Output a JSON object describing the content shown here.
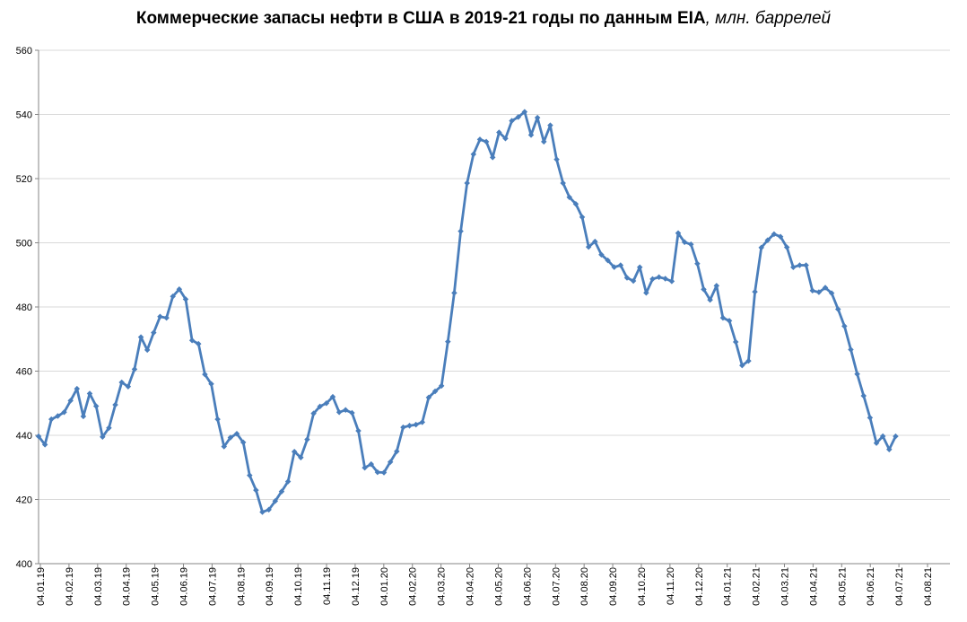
{
  "title": {
    "main": "Коммерческие запасы нефти в США в 2019-21 годы по данным EIA",
    "unit": ", млн. баррелей"
  },
  "colors": {
    "series": "#4a7ebb",
    "grid": "#d9d9d9",
    "axis": "#868686"
  },
  "chart_data": {
    "type": "line",
    "title": "Коммерческие запасы нефти в США в 2019-21 годы по данным EIA, млн. баррелей",
    "ylim": [
      400,
      560
    ],
    "yticks": [
      400,
      420,
      440,
      460,
      480,
      500,
      520,
      540,
      560
    ],
    "xtick_labels": [
      "04.01.19",
      "04.02.19",
      "04.03.19",
      "04.04.19",
      "04.05.19",
      "04.06.19",
      "04.07.19",
      "04.08.19",
      "04.09.19",
      "04.10.19",
      "04.11.19",
      "04.12.19",
      "04.01.20",
      "04.02.20",
      "04.03.20",
      "04.04.20",
      "04.05.20",
      "04.06.20",
      "04.07.20",
      "04.08.20",
      "04.09.20",
      "04.10.20",
      "04.11.20",
      "04.12.20",
      "04.01.21",
      "04.02.21",
      "04.03.21",
      "04.04.21",
      "04.05.21",
      "04.06.21",
      "04.07.21",
      "04.08.21"
    ],
    "grid": true,
    "legend": "none",
    "series": [
      {
        "values": [
          439.7,
          437.1,
          445.0,
          446.0,
          447.2,
          450.8,
          454.5,
          445.9,
          453.0,
          449.1,
          439.5,
          442.3,
          449.5,
          456.5,
          455.2,
          460.6,
          470.6,
          466.6,
          472.0,
          477.0,
          476.6,
          483.3,
          485.5,
          482.4,
          469.6,
          468.5,
          459.0,
          456.0,
          445.0,
          436.5,
          439.3,
          440.5,
          437.8,
          427.5,
          422.9,
          416.1,
          416.8,
          419.5,
          422.5,
          425.6,
          434.9,
          433.1,
          438.7,
          446.8,
          449.0,
          450.0,
          452.0,
          447.2,
          447.9,
          447.0,
          441.4,
          429.9,
          431.0,
          428.5,
          428.4,
          431.7,
          435.0,
          442.5,
          443.0,
          443.3,
          444.1,
          451.8,
          453.7,
          455.4,
          469.2,
          484.4,
          503.6,
          518.6,
          527.6,
          532.2,
          531.5,
          526.6,
          534.4,
          532.5,
          538.0,
          539.2,
          540.8,
          533.6,
          539.0,
          531.5,
          536.6,
          526.0,
          518.6,
          514.2,
          512.1,
          508.0,
          498.7,
          500.4,
          496.3,
          494.5,
          492.4,
          493.0,
          489.1,
          488.1,
          492.4,
          484.4,
          488.7,
          489.3,
          488.8,
          488.0,
          503.0,
          500.2,
          499.5,
          493.5,
          485.5,
          482.2,
          486.6,
          476.6,
          475.7,
          469.1,
          461.8,
          463.2,
          484.7,
          498.5,
          500.8,
          502.7,
          501.9,
          498.6,
          492.4,
          493.0,
          493.0,
          485.1,
          484.6,
          486.0,
          484.3,
          479.3,
          474.0,
          466.7,
          459.1,
          452.3,
          445.5,
          437.6,
          439.7,
          435.6,
          439.7
        ]
      }
    ]
  }
}
